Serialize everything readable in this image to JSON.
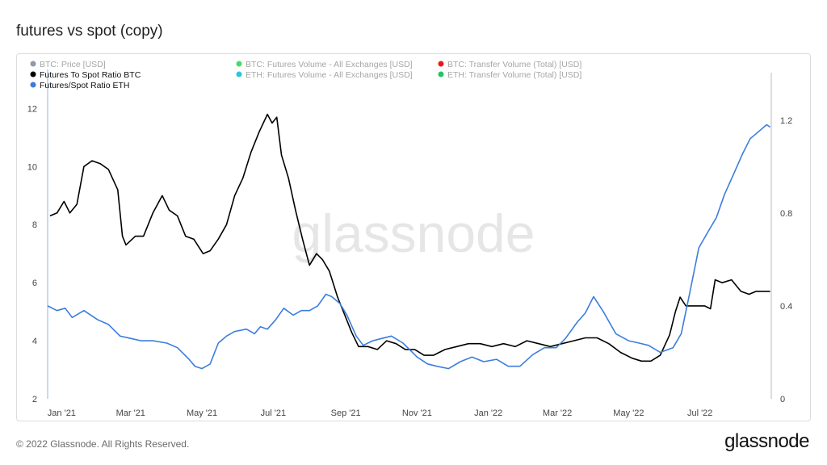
{
  "header": {
    "title": "futures vs spot (copy)"
  },
  "footer": {
    "copyright": "© 2022 Glassnode. All Rights Reserved.",
    "brand": "glassnode"
  },
  "watermark": "glassnode",
  "colors": {
    "btc_ratio": "#000000",
    "eth_ratio": "#3b7ddd",
    "muted": "#a6a6a6",
    "grid": "#eeeeee"
  },
  "chart_data": {
    "type": "line",
    "title": "futures vs spot (copy)",
    "legend": [
      {
        "label": "BTC: Price [USD]",
        "color": "#8d9aa8",
        "active": false
      },
      {
        "label": "BTC: Futures Volume - All Exchanges [USD]",
        "color": "#4cd964",
        "active": false
      },
      {
        "label": "BTC: Transfer Volume (Total) [USD]",
        "color": "#e8191d",
        "active": false
      },
      {
        "label": "Futures To Spot Ratio BTC",
        "color": "#000000",
        "active": true
      },
      {
        "label": "ETH: Futures Volume - All Exchanges [USD]",
        "color": "#2ec4e0",
        "active": false
      },
      {
        "label": "ETH: Transfer Volume (Total) [USD]",
        "color": "#23c46a",
        "active": false
      },
      {
        "label": "Futures/Spot Ratio ETH",
        "color": "#3b7ddd",
        "active": true
      }
    ],
    "x_ticks": [
      "Jan '21",
      "Mar '21",
      "May '21",
      "Jul '21",
      "Sep '21",
      "Nov '21",
      "Jan '22",
      "Mar '22",
      "May '22",
      "Jul '22"
    ],
    "x_range": [
      "2020-12-20",
      "2022-08-31"
    ],
    "left_axis": {
      "ticks": [
        "2",
        "4",
        "6",
        "8",
        "10",
        "12"
      ],
      "range": [
        2,
        12.4
      ]
    },
    "right_axis": {
      "ticks": [
        "0",
        "0.4",
        "0.8",
        "1.2"
      ],
      "range": [
        0,
        1.3
      ]
    },
    "series": [
      {
        "name": "Futures To Spot Ratio BTC",
        "axis": "left",
        "x": [
          "2020-12-22",
          "2020-12-28",
          "2021-01-03",
          "2021-01-08",
          "2021-01-14",
          "2021-01-20",
          "2021-01-27",
          "2021-02-03",
          "2021-02-10",
          "2021-02-18",
          "2021-02-22",
          "2021-02-25",
          "2021-03-05",
          "2021-03-12",
          "2021-03-20",
          "2021-03-28",
          "2021-04-03",
          "2021-04-10",
          "2021-04-17",
          "2021-04-24",
          "2021-05-02",
          "2021-05-08",
          "2021-05-15",
          "2021-05-22",
          "2021-05-29",
          "2021-06-05",
          "2021-06-12",
          "2021-06-19",
          "2021-06-26",
          "2021-06-30",
          "2021-07-04",
          "2021-07-08",
          "2021-07-14",
          "2021-07-20",
          "2021-07-26",
          "2021-08-01",
          "2021-08-07",
          "2021-08-12",
          "2021-08-18",
          "2021-08-25",
          "2021-08-31",
          "2021-09-06",
          "2021-09-12",
          "2021-09-20",
          "2021-09-28",
          "2021-10-06",
          "2021-10-14",
          "2021-10-22",
          "2021-10-30",
          "2021-11-07",
          "2021-11-15",
          "2021-11-25",
          "2021-12-05",
          "2021-12-15",
          "2021-12-25",
          "2022-01-04",
          "2022-01-14",
          "2022-01-24",
          "2022-02-03",
          "2022-02-13",
          "2022-02-23",
          "2022-03-05",
          "2022-03-15",
          "2022-03-25",
          "2022-04-04",
          "2022-04-14",
          "2022-04-24",
          "2022-05-04",
          "2022-05-12",
          "2022-05-20",
          "2022-05-28",
          "2022-06-05",
          "2022-06-10",
          "2022-06-14",
          "2022-06-19",
          "2022-06-27",
          "2022-07-05",
          "2022-07-10",
          "2022-07-14",
          "2022-07-20",
          "2022-07-28",
          "2022-08-05",
          "2022-08-12",
          "2022-08-18",
          "2022-08-25",
          "2022-08-30"
        ],
        "values": [
          8.3,
          8.4,
          8.8,
          8.4,
          8.7,
          10.0,
          10.2,
          10.1,
          9.9,
          9.2,
          7.6,
          7.3,
          7.6,
          7.6,
          8.4,
          9.0,
          8.5,
          8.3,
          7.6,
          7.5,
          7.0,
          7.1,
          7.5,
          8.0,
          9.0,
          9.6,
          10.5,
          11.2,
          11.8,
          11.5,
          11.7,
          10.4,
          9.6,
          8.5,
          7.5,
          6.6,
          7.0,
          6.8,
          6.4,
          5.5,
          4.9,
          4.3,
          3.8,
          3.8,
          3.7,
          4.0,
          3.9,
          3.7,
          3.7,
          3.5,
          3.5,
          3.7,
          3.8,
          3.9,
          3.9,
          3.8,
          3.9,
          3.8,
          4.0,
          3.9,
          3.8,
          3.9,
          4.0,
          4.1,
          4.1,
          3.9,
          3.6,
          3.4,
          3.3,
          3.3,
          3.5,
          4.2,
          5.0,
          5.5,
          5.2,
          5.2,
          5.2,
          5.1,
          6.1,
          6.0,
          6.1,
          5.7,
          5.6,
          5.7,
          5.7,
          5.7
        ]
      },
      {
        "name": "Futures/Spot Ratio ETH",
        "axis": "right",
        "x": [
          "2020-12-20",
          "2020-12-28",
          "2021-01-04",
          "2021-01-10",
          "2021-01-20",
          "2021-02-01",
          "2021-02-10",
          "2021-02-20",
          "2021-03-01",
          "2021-03-10",
          "2021-03-20",
          "2021-04-01",
          "2021-04-10",
          "2021-04-20",
          "2021-04-25",
          "2021-05-01",
          "2021-05-08",
          "2021-05-15",
          "2021-05-22",
          "2021-05-29",
          "2021-06-08",
          "2021-06-15",
          "2021-06-20",
          "2021-06-26",
          "2021-07-03",
          "2021-07-10",
          "2021-07-18",
          "2021-07-25",
          "2021-08-01",
          "2021-08-08",
          "2021-08-15",
          "2021-08-20",
          "2021-08-27",
          "2021-09-02",
          "2021-09-10",
          "2021-09-16",
          "2021-09-24",
          "2021-10-02",
          "2021-10-10",
          "2021-10-20",
          "2021-11-01",
          "2021-11-10",
          "2021-11-18",
          "2021-11-28",
          "2021-12-08",
          "2021-12-18",
          "2021-12-28",
          "2022-01-08",
          "2022-01-18",
          "2022-01-28",
          "2022-02-08",
          "2022-02-18",
          "2022-02-28",
          "2022-03-08",
          "2022-03-18",
          "2022-03-25",
          "2022-04-01",
          "2022-04-10",
          "2022-04-20",
          "2022-05-01",
          "2022-05-10",
          "2022-05-18",
          "2022-05-28",
          "2022-06-08",
          "2022-06-15",
          "2022-06-22",
          "2022-06-30",
          "2022-07-08",
          "2022-07-15",
          "2022-07-22",
          "2022-07-30",
          "2022-08-06",
          "2022-08-13",
          "2022-08-20",
          "2022-08-27",
          "2022-08-30"
        ],
        "values": [
          0.4,
          0.38,
          0.39,
          0.35,
          0.38,
          0.34,
          0.32,
          0.27,
          0.26,
          0.25,
          0.25,
          0.24,
          0.22,
          0.17,
          0.14,
          0.13,
          0.15,
          0.24,
          0.27,
          0.29,
          0.3,
          0.28,
          0.31,
          0.3,
          0.34,
          0.39,
          0.36,
          0.38,
          0.38,
          0.4,
          0.45,
          0.44,
          0.41,
          0.36,
          0.27,
          0.23,
          0.25,
          0.26,
          0.27,
          0.24,
          0.18,
          0.15,
          0.14,
          0.13,
          0.16,
          0.18,
          0.16,
          0.17,
          0.14,
          0.14,
          0.19,
          0.22,
          0.22,
          0.26,
          0.33,
          0.37,
          0.44,
          0.37,
          0.28,
          0.25,
          0.24,
          0.23,
          0.2,
          0.22,
          0.28,
          0.45,
          0.65,
          0.72,
          0.78,
          0.88,
          0.97,
          1.05,
          1.12,
          1.15,
          1.18,
          1.17
        ]
      }
    ]
  }
}
